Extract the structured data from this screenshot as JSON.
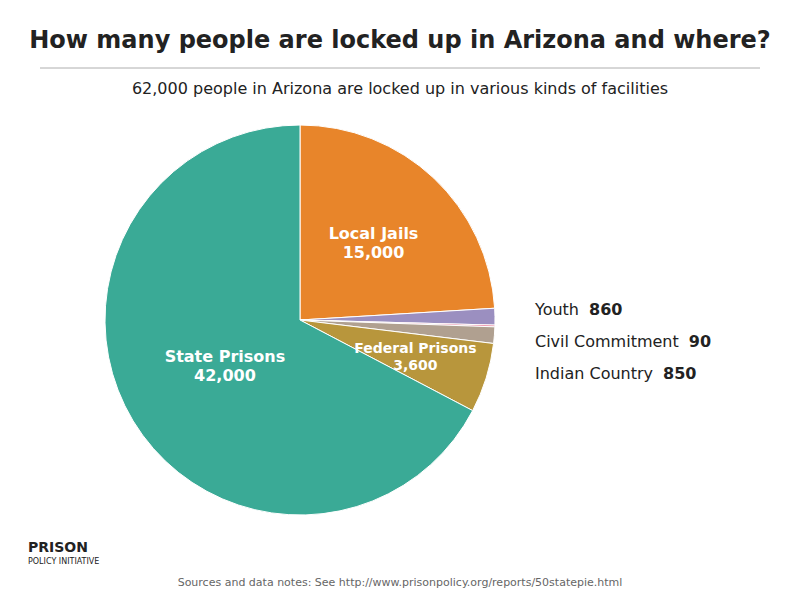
{
  "chart_data": {
    "type": "pie",
    "title": "How many people are locked up in Arizona and where?",
    "subtitle": "62,000 people in Arizona are locked up in various kinds of facilities",
    "categories": [
      "Local Jails",
      "Youth",
      "Civil Commitment",
      "Indian Country",
      "Federal Prisons",
      "State Prisons"
    ],
    "values": [
      15000,
      860,
      90,
      850,
      3600,
      42000
    ],
    "value_labels": [
      "15,000",
      "860",
      "90",
      "850",
      "3,600",
      "42,000"
    ],
    "colors": [
      "#e8852a",
      "#9b8fc0",
      "#e87090",
      "#b0a090",
      "#b8963c",
      "#3aaa96"
    ],
    "data_labels": true,
    "annotations": [
      "Sources and data notes: See http://www.prisonpolicy.org/reports/50statepie.html",
      "PRISON",
      "POLICY INITIATIVE"
    ]
  }
}
